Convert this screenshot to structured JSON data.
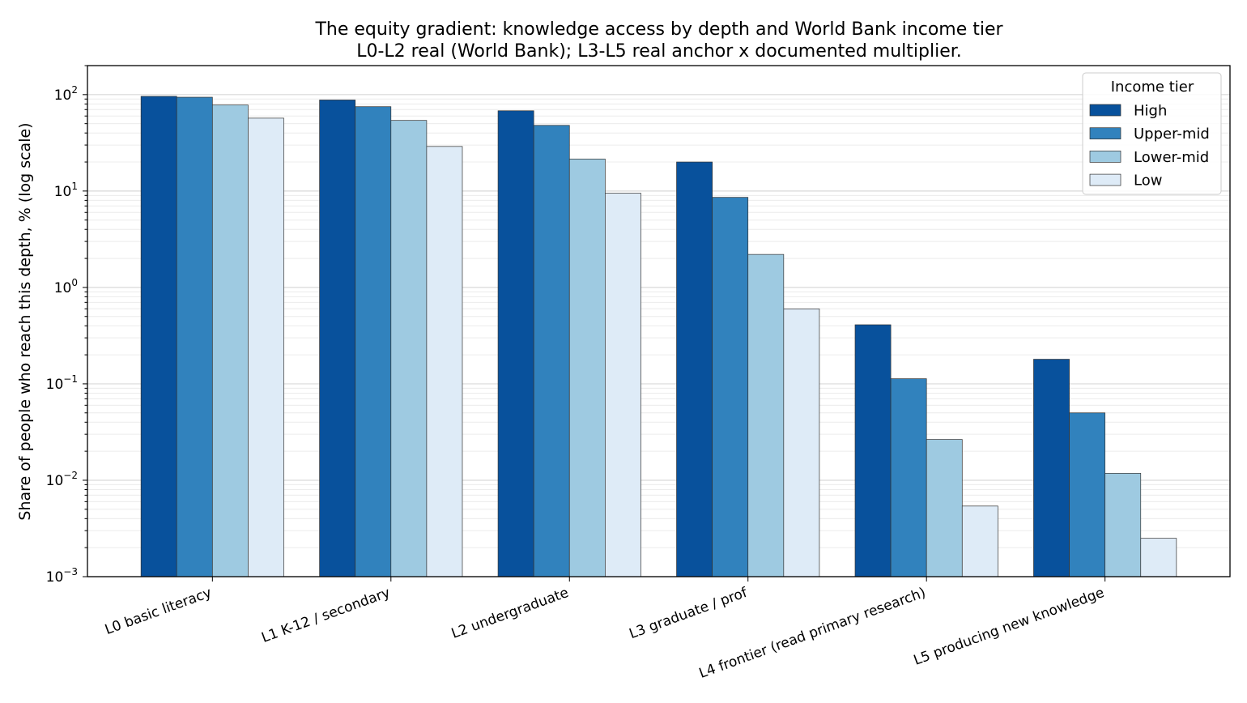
{
  "chart_data": {
    "type": "bar",
    "title": "The equity gradient: knowledge access by depth and World Bank income tier",
    "subtitle": "L0-L2 real (World Bank); L3-L5 real anchor x documented multiplier.",
    "xlabel": "",
    "ylabel": "Share of people who reach this depth, % (log scale)",
    "yscale": "log",
    "ylim": [
      0.001,
      200
    ],
    "yticks": [
      {
        "value": 0.001,
        "base": "10",
        "exp": "−3"
      },
      {
        "value": 0.01,
        "base": "10",
        "exp": "−2"
      },
      {
        "value": 0.1,
        "base": "10",
        "exp": "−1"
      },
      {
        "value": 1,
        "base": "10",
        "exp": "0"
      },
      {
        "value": 10,
        "base": "10",
        "exp": "1"
      },
      {
        "value": 100,
        "base": "10",
        "exp": "2"
      }
    ],
    "grid": "horizontal major and minor",
    "legend": {
      "title": "Income tier",
      "position": "top-right"
    },
    "categories": [
      "L0 basic literacy",
      "L1 K-12 / secondary",
      "L2 undergraduate",
      "L3 graduate / prof",
      "L4 frontier (read primary research)",
      "L5 producing new knowledge"
    ],
    "series": [
      {
        "name": "High",
        "color": "#08519c",
        "values": [
          96,
          88,
          68,
          20,
          0.41,
          0.18
        ]
      },
      {
        "name": "Upper-mid",
        "color": "#3182bd",
        "values": [
          94,
          75,
          48,
          8.6,
          0.113,
          0.05
        ]
      },
      {
        "name": "Lower-mid",
        "color": "#9ecae1",
        "values": [
          78,
          54,
          21.5,
          2.2,
          0.0265,
          0.0118
        ]
      },
      {
        "name": "Low",
        "color": "#deebf7",
        "values": [
          57,
          29,
          9.5,
          0.6,
          0.0054,
          0.0025
        ]
      }
    ]
  }
}
